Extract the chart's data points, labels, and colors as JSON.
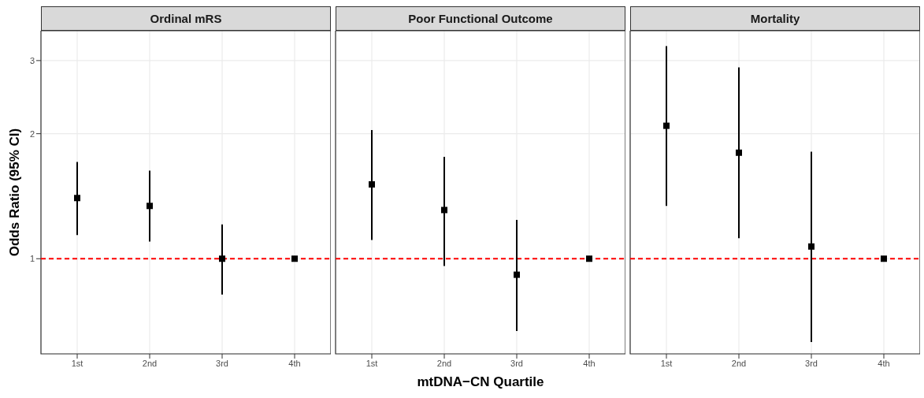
{
  "chart_data": [
    {
      "type": "scatter",
      "title": "Ordinal mRS",
      "ylabel": "Odds Ratio (95% CI)",
      "categories": [
        "1st",
        "2nd",
        "3rd",
        "4th"
      ],
      "series": [
        {
          "color": "#000000",
          "values": [
            1.4,
            1.34,
            1.0,
            1.0
          ],
          "errors": [
            [
              1.14,
              1.71
            ],
            [
              1.1,
              1.63
            ],
            [
              0.82,
              1.21
            ],
            null
          ]
        }
      ],
      "log": "y",
      "ylim": [
        0.59,
        3.54
      ],
      "yticks": [
        1,
        2,
        3
      ],
      "grid": true,
      "marker": "square",
      "legend": false,
      "ref_lines": [
        {
          "axis": "y",
          "value": 1,
          "color": "#ff0000",
          "line_style": "dashed"
        }
      ]
    },
    {
      "type": "scatter",
      "title": "Poor Functional Outcome",
      "xlabel": "mtDNA−CN Quartile",
      "categories": [
        "1st",
        "2nd",
        "3rd",
        "4th"
      ],
      "series": [
        {
          "color": "#000000",
          "values": [
            1.51,
            1.31,
            0.915,
            1.0
          ],
          "errors": [
            [
              1.11,
              2.04
            ],
            [
              0.96,
              1.76
            ],
            [
              0.67,
              1.24
            ],
            null
          ]
        }
      ],
      "log": "y",
      "ylim": [
        0.59,
        3.54
      ],
      "yticks": [
        1,
        2,
        3
      ],
      "grid": true,
      "marker": "square",
      "legend": false,
      "tick_labels": "x",
      "ref_lines": [
        {
          "axis": "y",
          "value": 1,
          "color": "#ff0000",
          "line_style": "dashed"
        }
      ]
    },
    {
      "type": "scatter",
      "title": "Mortality",
      "categories": [
        "1st",
        "2nd",
        "3rd",
        "4th"
      ],
      "series": [
        {
          "color": "#000000",
          "values": [
            2.09,
            1.8,
            1.07,
            1.0
          ],
          "errors": [
            [
              1.34,
              3.25
            ],
            [
              1.12,
              2.89
            ],
            [
              0.63,
              1.81
            ],
            null
          ]
        }
      ],
      "log": "y",
      "ylim": [
        0.59,
        3.54
      ],
      "yticks": [
        1,
        2,
        3
      ],
      "grid": true,
      "marker": "square",
      "legend": false,
      "tick_labels": "x",
      "ref_lines": [
        {
          "axis": "y",
          "value": 1,
          "color": "#ff0000",
          "line_style": "dashed"
        }
      ]
    }
  ]
}
